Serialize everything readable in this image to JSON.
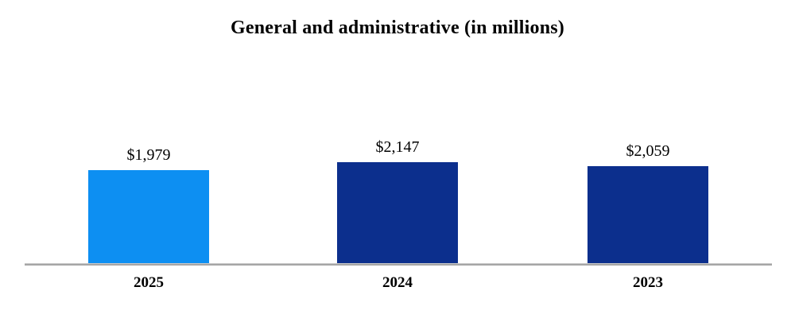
{
  "chart_data": {
    "type": "bar",
    "title": "General and administrative (in millions)",
    "categories": [
      "2025",
      "2024",
      "2023"
    ],
    "values": [
      1979,
      2147,
      2059
    ],
    "display_values": [
      "$1,979",
      "$2,147",
      "$2,059"
    ],
    "bar_colors": [
      "#0d8ff2",
      "#0c2f8d",
      "#0c2f8d"
    ],
    "xlabel": "",
    "ylabel": "",
    "ylim": [
      0,
      2400
    ],
    "grid": false,
    "legend": "none",
    "value_label_position": "above-bar",
    "axis_line_color": "#a6a6a6"
  }
}
